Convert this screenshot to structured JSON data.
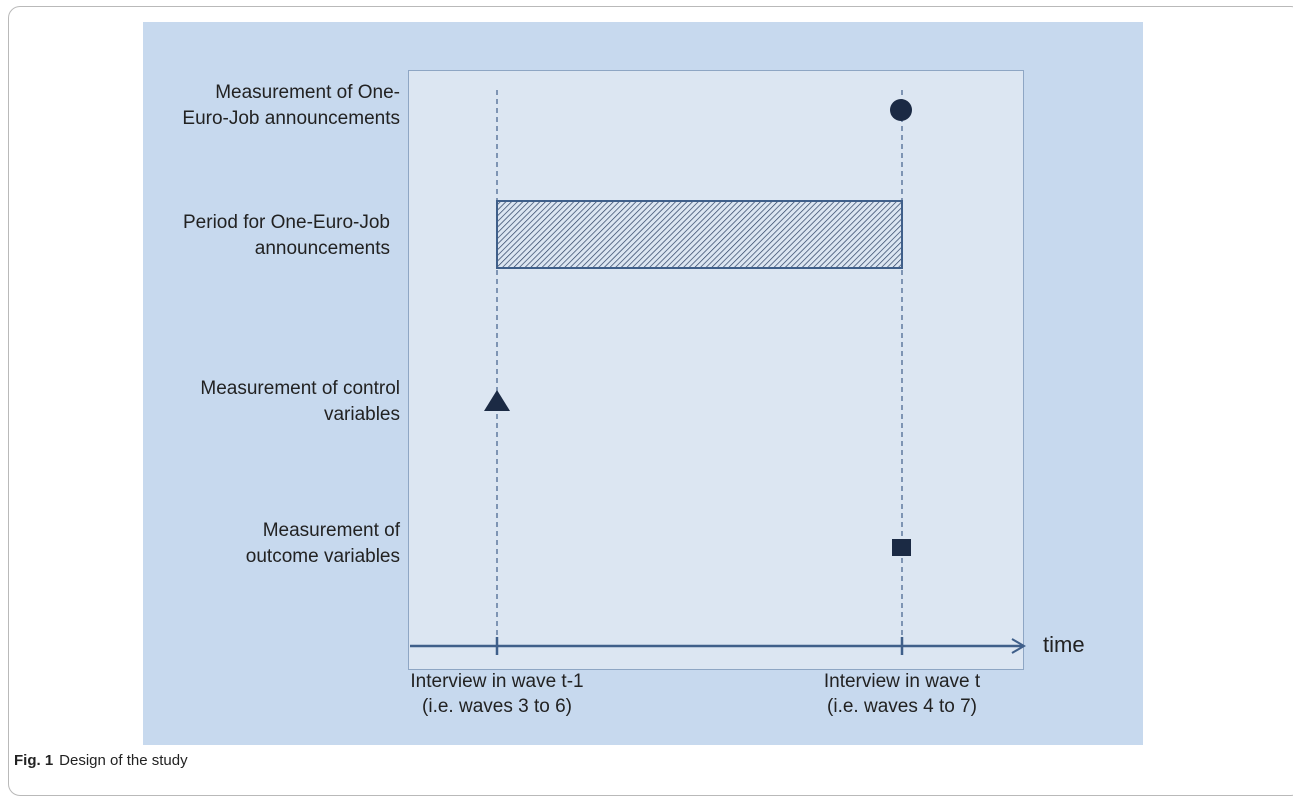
{
  "rows": [
    {
      "label": "Measurement of One-\nEuro-Job announcements"
    },
    {
      "label": "Period for One-Euro-Job\nannouncements"
    },
    {
      "label": "Measurement of control\nvariables"
    },
    {
      "label": "Measurement of\noutcome variables"
    }
  ],
  "axis": {
    "time_label": "time",
    "tick_left": "Interview in wave t-1\n(i.e. waves 3 to 6)",
    "tick_right": "Interview in wave t\n(i.e. waves 4 to 7)"
  },
  "caption": {
    "prefix": "Fig. 1",
    "text": "Design of the study"
  },
  "colors": {
    "panel": "#c7d9ee",
    "plot": "#dce6f2",
    "marker": "#1b2a44",
    "line": "#3f5f8a"
  }
}
